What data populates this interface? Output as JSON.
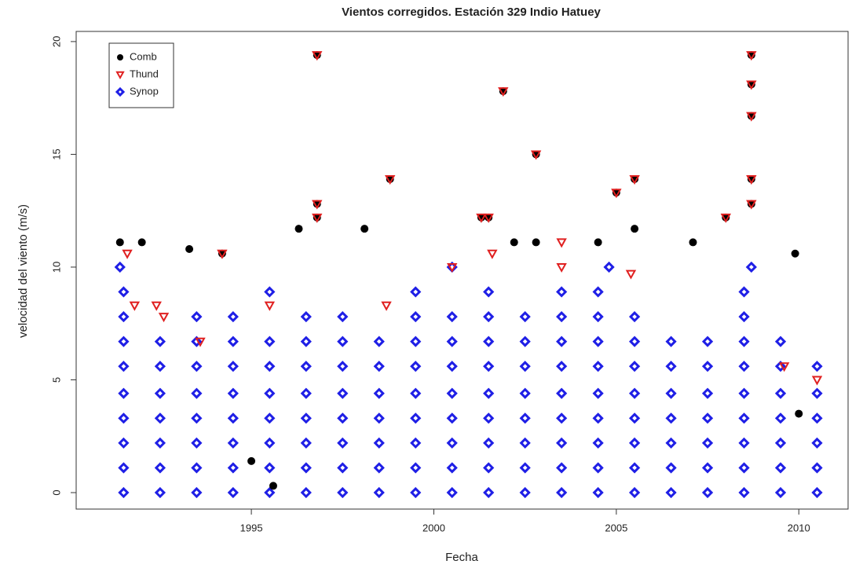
{
  "chart_data": {
    "type": "scatter",
    "title": "Vientos corregidos. Estación 329 Indio Hatuey",
    "x_label": "Fecha",
    "y_label": "velocidad del viento (m/s)",
    "xlim": [
      1990.2,
      2011.35
    ],
    "ylim": [
      -0.73,
      20.45
    ],
    "xticks": [
      1995,
      2000,
      2005,
      2010
    ],
    "yticks": [
      0,
      5,
      10,
      15,
      20
    ],
    "grid": false,
    "legend": "topleft",
    "series": [
      {
        "name": "Synop",
        "color": "#1f1fe6",
        "marker": "diamond",
        "x": [
          1991.5,
          1992.5,
          1993.5,
          1994.5,
          1995.5,
          1996.5,
          1997.5,
          1998.5,
          1999.5,
          2000.5,
          2001.5,
          2002.5,
          2003.5,
          2004.5,
          2005.5,
          2006.5,
          2007.5,
          2008.5,
          2009.5,
          2010.5,
          1991.5,
          1992.5,
          1993.5,
          1994.5,
          1995.5,
          1996.5,
          1997.5,
          1998.5,
          1999.5,
          2000.5,
          2001.5,
          2002.5,
          2003.5,
          2004.5,
          2005.5,
          2006.5,
          2007.5,
          2008.5,
          2009.5,
          2010.5,
          1991.5,
          1992.5,
          1993.5,
          1994.5,
          1995.5,
          1996.5,
          1997.5,
          1998.5,
          1999.5,
          2000.5,
          2001.5,
          2002.5,
          2003.5,
          2004.5,
          2005.5,
          2006.5,
          2007.5,
          2008.5,
          2009.5,
          2010.5,
          1991.5,
          1992.5,
          1993.5,
          1994.5,
          1995.5,
          1996.5,
          1997.5,
          1998.5,
          1999.5,
          2000.5,
          2001.5,
          2002.5,
          2003.5,
          2004.5,
          2005.5,
          2006.5,
          2007.5,
          2008.5,
          2009.5,
          2010.5,
          1991.5,
          1992.5,
          1993.5,
          1994.5,
          1995.5,
          1996.5,
          1997.5,
          1998.5,
          1999.5,
          2000.5,
          2001.5,
          2002.5,
          2003.5,
          2004.5,
          2005.5,
          2006.5,
          2007.5,
          2008.5,
          2009.5,
          2010.5,
          1991.5,
          1992.5,
          1993.5,
          1994.5,
          1995.5,
          1996.5,
          1997.5,
          1998.5,
          1999.5,
          2000.5,
          2001.5,
          2002.5,
          2003.5,
          2004.5,
          2005.5,
          2006.5,
          2007.5,
          2008.5,
          2009.5,
          2010.5,
          1991.5,
          1992.5,
          1993.5,
          1994.5,
          1995.5,
          1996.5,
          1997.5,
          1998.5,
          1999.5,
          2000.5,
          2001.5,
          2002.5,
          2003.5,
          2004.5,
          2005.5,
          2006.5,
          2007.5,
          2008.5,
          2009.5,
          1991.5,
          1993.5,
          1994.5,
          1996.5,
          1997.5,
          1999.5,
          2000.5,
          2001.5,
          2002.5,
          2003.5,
          2004.5,
          2005.5,
          2008.5,
          1991.5,
          1995.5,
          1999.5,
          2001.5,
          2003.5,
          2004.5,
          2008.5,
          1991.4,
          2000.5,
          2004.8,
          2008.7
        ],
        "values": [
          0,
          0,
          0,
          0,
          0,
          0,
          0,
          0,
          0,
          0,
          0,
          0,
          0,
          0,
          0,
          0,
          0,
          0,
          0,
          0,
          1.1,
          1.1,
          1.1,
          1.1,
          1.1,
          1.1,
          1.1,
          1.1,
          1.1,
          1.1,
          1.1,
          1.1,
          1.1,
          1.1,
          1.1,
          1.1,
          1.1,
          1.1,
          1.1,
          1.1,
          2.2,
          2.2,
          2.2,
          2.2,
          2.2,
          2.2,
          2.2,
          2.2,
          2.2,
          2.2,
          2.2,
          2.2,
          2.2,
          2.2,
          2.2,
          2.2,
          2.2,
          2.2,
          2.2,
          2.2,
          3.3,
          3.3,
          3.3,
          3.3,
          3.3,
          3.3,
          3.3,
          3.3,
          3.3,
          3.3,
          3.3,
          3.3,
          3.3,
          3.3,
          3.3,
          3.3,
          3.3,
          3.3,
          3.3,
          3.3,
          4.4,
          4.4,
          4.4,
          4.4,
          4.4,
          4.4,
          4.4,
          4.4,
          4.4,
          4.4,
          4.4,
          4.4,
          4.4,
          4.4,
          4.4,
          4.4,
          4.4,
          4.4,
          4.4,
          4.4,
          5.6,
          5.6,
          5.6,
          5.6,
          5.6,
          5.6,
          5.6,
          5.6,
          5.6,
          5.6,
          5.6,
          5.6,
          5.6,
          5.6,
          5.6,
          5.6,
          5.6,
          5.6,
          5.6,
          5.6,
          6.7,
          6.7,
          6.7,
          6.7,
          6.7,
          6.7,
          6.7,
          6.7,
          6.7,
          6.7,
          6.7,
          6.7,
          6.7,
          6.7,
          6.7,
          6.7,
          6.7,
          6.7,
          6.7,
          7.8,
          7.8,
          7.8,
          7.8,
          7.8,
          7.8,
          7.8,
          7.8,
          7.8,
          7.8,
          7.8,
          7.8,
          7.8,
          8.9,
          8.9,
          8.9,
          8.9,
          8.9,
          8.9,
          8.9,
          10,
          10,
          10,
          10
        ]
      },
      {
        "name": "Comb",
        "color": "#000000",
        "marker": "circle",
        "x": [
          1996.8,
          1996.8,
          1996.8,
          2001.9,
          2002.8,
          1998.8,
          2008.7,
          2008.7,
          2008.7,
          2008.7,
          2008.7,
          2005.5,
          2005,
          2008,
          2001.3,
          2001.5,
          1996.3,
          1998.1,
          2005.5,
          1991.4,
          1992,
          2002.2,
          2002.8,
          2004.5,
          2007.1,
          1993.3,
          2009.9,
          1994.2,
          1995.6,
          1995,
          2010
        ],
        "values": [
          19.4,
          12.8,
          12.2,
          17.8,
          15,
          13.9,
          19.4,
          18.1,
          16.7,
          13.9,
          12.8,
          13.9,
          13.3,
          12.2,
          12.2,
          12.2,
          11.7,
          11.7,
          11.7,
          11.1,
          11.1,
          11.1,
          11.1,
          11.1,
          11.1,
          10.8,
          10.6,
          10.6,
          0.3,
          1.4,
          3.5
        ]
      },
      {
        "name": "Thund",
        "color": "#e02020",
        "marker": "triangle",
        "x": [
          1996.8,
          1996.8,
          1996.8,
          2001.9,
          2002.8,
          1998.8,
          2008.7,
          2008.7,
          2008.7,
          2008.7,
          2008.7,
          2005.5,
          2005,
          2008,
          2001.3,
          2001.5,
          1991.6,
          1994.2,
          2003.5,
          2003.5,
          2001.6,
          1991.8,
          1992.4,
          1992.6,
          1993.6,
          1995.5,
          1998.7,
          2000.5,
          2005.4,
          2009.6,
          2010.5
        ],
        "values": [
          19.4,
          12.8,
          12.2,
          17.8,
          15,
          13.9,
          19.4,
          18.1,
          16.7,
          13.9,
          12.8,
          13.9,
          13.3,
          12.2,
          12.2,
          12.2,
          10.6,
          10.6,
          11.1,
          10,
          10.6,
          8.3,
          8.3,
          7.8,
          6.7,
          8.3,
          8.3,
          10,
          9.7,
          5.6,
          5
        ]
      }
    ]
  }
}
